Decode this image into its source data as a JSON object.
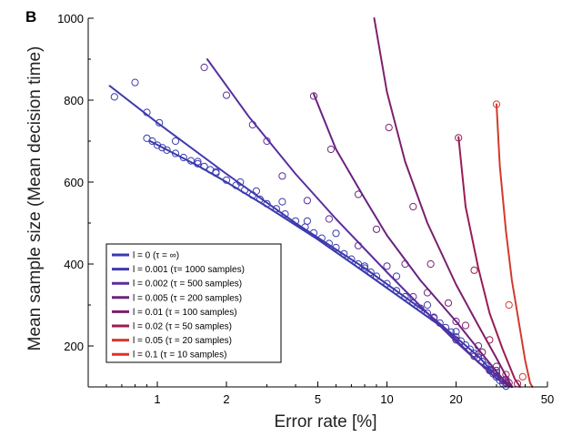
{
  "chart_data": {
    "type": "scatter",
    "panel_label": "B",
    "xlabel": "Error rate [%]",
    "ylabel": "Mean sample size (Mean decision time)",
    "xscale": "log",
    "xlim": [
      0.5,
      50
    ],
    "ylim": [
      100,
      1000
    ],
    "xticks": [
      1,
      2,
      5,
      10,
      20,
      50
    ],
    "yticks": [
      200,
      400,
      600,
      800,
      1000
    ],
    "legend_position": "lower-left",
    "series": [
      {
        "name": "l = 0  (τ = ∞)",
        "color": "#3a3ab0",
        "curve": [
          [
            0.93,
            700
          ],
          [
            1.5,
            640
          ],
          [
            2,
            600
          ],
          [
            3,
            540
          ],
          [
            5,
            460
          ],
          [
            8,
            380
          ],
          [
            12,
            310
          ],
          [
            18,
            240
          ],
          [
            25,
            160
          ],
          [
            30,
            130
          ],
          [
            35,
            102
          ]
        ],
        "points": [
          [
            0.9,
            707
          ],
          [
            0.95,
            700
          ],
          [
            1.0,
            690
          ],
          [
            1.05,
            684
          ],
          [
            1.1,
            678
          ],
          [
            1.2,
            670
          ],
          [
            1.3,
            660
          ],
          [
            1.4,
            652
          ],
          [
            1.5,
            645
          ],
          [
            1.6,
            638
          ],
          [
            1.7,
            630
          ],
          [
            1.8,
            622
          ],
          [
            2.0,
            605
          ],
          [
            2.2,
            592
          ],
          [
            2.4,
            580
          ],
          [
            2.6,
            568
          ],
          [
            2.8,
            558
          ],
          [
            3.0,
            547
          ],
          [
            3.3,
            535
          ],
          [
            3.6,
            522
          ],
          [
            4.0,
            505
          ],
          [
            4.4,
            490
          ],
          [
            4.8,
            476
          ],
          [
            5.2,
            463
          ],
          [
            5.6,
            450
          ],
          [
            6.0,
            440
          ],
          [
            6.5,
            425
          ],
          [
            7.0,
            412
          ],
          [
            7.5,
            400
          ],
          [
            8.0,
            390
          ],
          [
            8.5,
            380
          ],
          [
            9.0,
            370
          ],
          [
            10,
            352
          ],
          [
            11,
            335
          ],
          [
            12,
            320
          ],
          [
            13,
            305
          ],
          [
            14,
            292
          ],
          [
            15,
            280
          ],
          [
            16,
            268
          ],
          [
            17,
            256
          ],
          [
            18,
            245
          ],
          [
            19,
            234
          ],
          [
            20,
            222
          ],
          [
            21,
            212
          ],
          [
            22,
            202
          ],
          [
            23,
            192
          ],
          [
            24,
            182
          ],
          [
            25,
            172
          ],
          [
            26,
            162
          ],
          [
            27,
            152
          ],
          [
            28,
            142
          ],
          [
            29,
            132
          ],
          [
            30,
            124
          ],
          [
            31,
            116
          ],
          [
            32,
            108
          ],
          [
            33,
            102
          ]
        ]
      },
      {
        "name": "l = 0.001  (τ= 1000 samples)",
        "color": "#3f3aad",
        "curve": [
          [
            0.62,
            835
          ],
          [
            1,
            745
          ],
          [
            2,
            620
          ],
          [
            4,
            500
          ],
          [
            8,
            390
          ],
          [
            15,
            280
          ],
          [
            25,
            175
          ],
          [
            32,
            110
          ],
          [
            35,
            100
          ]
        ],
        "points": [
          [
            0.65,
            808
          ],
          [
            0.8,
            843
          ],
          [
            0.9,
            770
          ],
          [
            1.02,
            745
          ],
          [
            1.2,
            700
          ],
          [
            1.5,
            650
          ],
          [
            1.8,
            625
          ],
          [
            2.3,
            600
          ],
          [
            2.7,
            578
          ],
          [
            3.5,
            552
          ],
          [
            4.5,
            505
          ],
          [
            6.0,
            475
          ],
          [
            8.0,
            395
          ],
          [
            11,
            370
          ],
          [
            15,
            300
          ],
          [
            20,
            235
          ],
          [
            25,
            180
          ],
          [
            30,
            135
          ],
          [
            33,
            110
          ]
        ]
      },
      {
        "name": "l = 0.002  (τ = 500 samples)",
        "color": "#5a2e9e",
        "curve": [
          [
            1.65,
            900
          ],
          [
            2.5,
            760
          ],
          [
            4,
            620
          ],
          [
            6,
            510
          ],
          [
            10,
            380
          ],
          [
            15,
            280
          ],
          [
            20,
            210
          ],
          [
            30,
            120
          ],
          [
            35,
            100
          ]
        ],
        "points": [
          [
            1.6,
            880
          ],
          [
            2.0,
            812
          ],
          [
            2.6,
            740
          ],
          [
            3.0,
            700
          ],
          [
            3.5,
            615
          ],
          [
            4.5,
            555
          ],
          [
            5.6,
            510
          ],
          [
            7.5,
            445
          ],
          [
            10,
            395
          ],
          [
            13,
            320
          ],
          [
            16,
            270
          ],
          [
            20,
            215
          ],
          [
            24,
            175
          ],
          [
            28,
            140
          ],
          [
            32,
            115
          ]
        ]
      },
      {
        "name": "l = 0.005  (τ = 200 samples)",
        "color": "#6a237f",
        "curve": [
          [
            4.8,
            815
          ],
          [
            6,
            680
          ],
          [
            8,
            560
          ],
          [
            10,
            470
          ],
          [
            14,
            360
          ],
          [
            20,
            260
          ],
          [
            26,
            180
          ],
          [
            33,
            110
          ],
          [
            35,
            100
          ]
        ],
        "points": [
          [
            4.8,
            810
          ],
          [
            5.7,
            680
          ],
          [
            7.5,
            570
          ],
          [
            9.0,
            485
          ],
          [
            12,
            400
          ],
          [
            15,
            330
          ],
          [
            20,
            260
          ],
          [
            25,
            200
          ],
          [
            30,
            150
          ],
          [
            33,
            118
          ]
        ]
      },
      {
        "name": "l = 0.01  (τ = 100 samples)",
        "color": "#7d1f6e",
        "curve": [
          [
            8.8,
            1000
          ],
          [
            10,
            820
          ],
          [
            12,
            650
          ],
          [
            15,
            500
          ],
          [
            20,
            350
          ],
          [
            25,
            250
          ],
          [
            30,
            170
          ],
          [
            35,
            100
          ]
        ],
        "points": [
          [
            10.2,
            733
          ],
          [
            13,
            540
          ],
          [
            15.5,
            400
          ],
          [
            18.5,
            305
          ],
          [
            22,
            250
          ],
          [
            26,
            185
          ],
          [
            30,
            140
          ],
          [
            34,
            110
          ]
        ]
      },
      {
        "name": "l = 0.02  (τ = 50 samples)",
        "color": "#9a1c55",
        "curve": [
          [
            20.5,
            710
          ],
          [
            22,
            540
          ],
          [
            25,
            390
          ],
          [
            28,
            280
          ],
          [
            32,
            190
          ],
          [
            36,
            120
          ],
          [
            38,
            100
          ]
        ],
        "points": [
          [
            20.5,
            708
          ],
          [
            24,
            385
          ],
          [
            28,
            215
          ],
          [
            33,
            130
          ],
          [
            37,
            108
          ]
        ]
      },
      {
        "name": "l = 0.05  (τ = 20 samples)",
        "color": "#d23a2e",
        "curve": [
          [
            30,
            790
          ],
          [
            31,
            640
          ],
          [
            33,
            480
          ],
          [
            35,
            360
          ],
          [
            38,
            240
          ],
          [
            40,
            165
          ],
          [
            42,
            110
          ],
          [
            43,
            100
          ]
        ],
        "points": [
          [
            30,
            790
          ],
          [
            34,
            300
          ],
          [
            39,
            125
          ]
        ]
      },
      {
        "name": "l = 0.1  (τ = 10 samples)",
        "color": "#e0302a",
        "curve": [],
        "points": []
      }
    ]
  }
}
